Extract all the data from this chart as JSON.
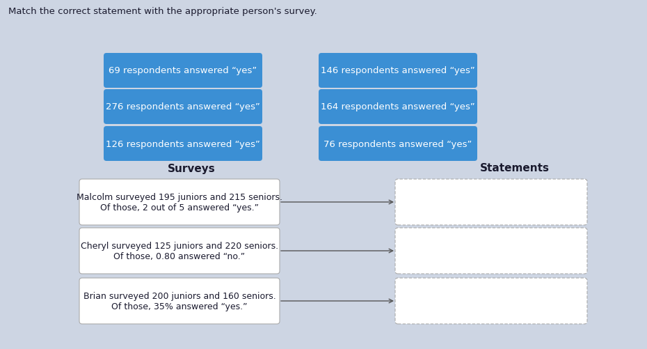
{
  "title": "Match the correct statement with the appropriate person's survey.",
  "title_fontsize": 9.5,
  "bg_color": "#cdd5e3",
  "blue_box_color": "#3b8fd4",
  "white_box_color": "#ffffff",
  "text_color_white": "#ffffff",
  "text_color_dark": "#1a1a2e",
  "blue_boxes_left": [
    "69 respondents answered “yes”",
    "276 respondents answered “yes”",
    "126 respondents answered “yes”"
  ],
  "blue_boxes_right": [
    "146 respondents answered “yes”",
    "164 respondents answered “yes”",
    "76 respondents answered “yes”"
  ],
  "surveys_label": "Surveys",
  "statements_label": "Statements",
  "survey_boxes": [
    "Malcolm surveyed 195 juniors and 215 seniors.\nOf those, 2 out of 5 answered “yes.”",
    "Cheryl surveyed 125 juniors and 220 seniors.\nOf those, 0.80 answered “no.”",
    "Brian surveyed 200 juniors and 160 seniors.\nOf those, 35% answered “yes.”"
  ],
  "fig_width": 9.3,
  "fig_height": 5.02,
  "dpi": 100
}
